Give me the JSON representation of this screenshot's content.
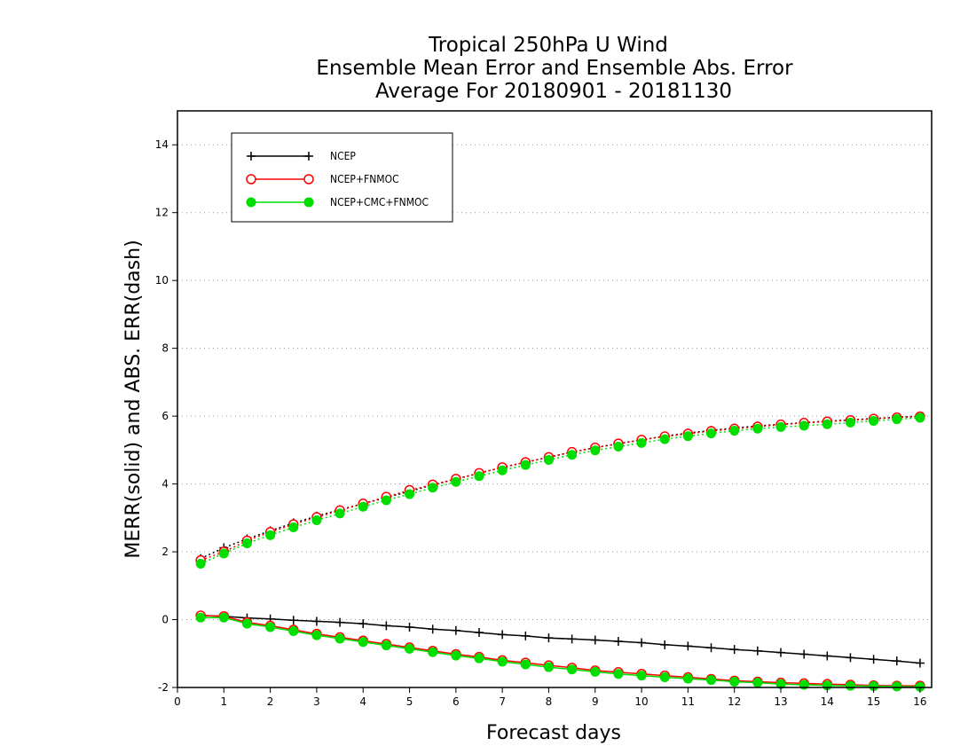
{
  "chart_data": {
    "type": "line",
    "title": [
      "Tropical 250hPa U Wind",
      "Ensemble Mean Error and Ensemble Abs. Error",
      "Average For 20180901 - 20181130"
    ],
    "xlabel": "Forecast days",
    "ylabel": "MERR(solid) and ABS. ERR(dash)",
    "xlim": [
      0,
      16.25
    ],
    "ylim": [
      -2,
      15
    ],
    "xticks": [
      0,
      1,
      2,
      3,
      4,
      5,
      6,
      7,
      8,
      9,
      10,
      11,
      12,
      13,
      14,
      15,
      16
    ],
    "yticks": [
      -2,
      0,
      2,
      4,
      6,
      8,
      10,
      12,
      14
    ],
    "grid": "horizontal dotted",
    "legend_position": "top-left",
    "x": [
      0.5,
      1,
      1.5,
      2,
      2.5,
      3,
      3.5,
      4,
      4.5,
      5,
      5.5,
      6,
      6.5,
      7,
      7.5,
      8,
      8.5,
      9,
      9.5,
      10,
      10.5,
      11,
      11.5,
      12,
      12.5,
      13,
      13.5,
      14,
      14.5,
      15,
      15.5,
      16
    ],
    "series": [
      {
        "name": "NCEP",
        "color": "#000000",
        "marker": "plus",
        "merr": [
          0.12,
          0.1,
          0.05,
          0.02,
          -0.02,
          -0.05,
          -0.08,
          -0.12,
          -0.18,
          -0.22,
          -0.28,
          -0.32,
          -0.38,
          -0.44,
          -0.48,
          -0.54,
          -0.57,
          -0.6,
          -0.64,
          -0.68,
          -0.74,
          -0.78,
          -0.83,
          -0.88,
          -0.92,
          -0.97,
          -1.02,
          -1.07,
          -1.12,
          -1.17,
          -1.22,
          -1.28
        ],
        "abs_err": [
          1.8,
          2.12,
          2.38,
          2.62,
          2.85,
          3.05,
          3.24,
          3.42,
          3.6,
          3.78,
          3.97,
          4.14,
          4.32,
          4.49,
          4.64,
          4.79,
          4.94,
          5.07,
          5.19,
          5.3,
          5.41,
          5.5,
          5.58,
          5.65,
          5.71,
          5.76,
          5.81,
          5.85,
          5.89,
          5.93,
          5.97,
          6.0
        ]
      },
      {
        "name": "NCEP+FNMOC",
        "color": "#ff0000",
        "marker": "open-circle",
        "merr": [
          0.12,
          0.1,
          -0.08,
          -0.18,
          -0.3,
          -0.42,
          -0.52,
          -0.62,
          -0.72,
          -0.82,
          -0.92,
          -1.02,
          -1.1,
          -1.2,
          -1.27,
          -1.35,
          -1.42,
          -1.5,
          -1.55,
          -1.6,
          -1.65,
          -1.7,
          -1.75,
          -1.8,
          -1.83,
          -1.86,
          -1.88,
          -1.9,
          -1.92,
          -1.94,
          -1.95,
          -1.95
        ],
        "abs_err": [
          1.75,
          2.0,
          2.33,
          2.58,
          2.81,
          3.02,
          3.22,
          3.42,
          3.62,
          3.82,
          3.98,
          4.15,
          4.32,
          4.49,
          4.64,
          4.79,
          4.94,
          5.07,
          5.19,
          5.3,
          5.4,
          5.48,
          5.56,
          5.63,
          5.69,
          5.75,
          5.8,
          5.84,
          5.88,
          5.92,
          5.96,
          5.99
        ]
      },
      {
        "name": "NCEP+CMC+FNMOC",
        "color": "#00dd00",
        "marker": "filled-circle",
        "merr": [
          0.06,
          0.06,
          -0.12,
          -0.22,
          -0.34,
          -0.46,
          -0.56,
          -0.66,
          -0.76,
          -0.86,
          -0.96,
          -1.06,
          -1.14,
          -1.24,
          -1.32,
          -1.4,
          -1.47,
          -1.54,
          -1.6,
          -1.65,
          -1.7,
          -1.74,
          -1.78,
          -1.83,
          -1.86,
          -1.9,
          -1.92,
          -1.94,
          -1.95,
          -1.96,
          -1.97,
          -1.98
        ],
        "abs_err": [
          1.65,
          1.95,
          2.25,
          2.49,
          2.72,
          2.93,
          3.13,
          3.33,
          3.52,
          3.7,
          3.89,
          4.06,
          4.23,
          4.4,
          4.56,
          4.71,
          4.86,
          4.99,
          5.1,
          5.21,
          5.32,
          5.41,
          5.49,
          5.57,
          5.63,
          5.68,
          5.72,
          5.76,
          5.81,
          5.86,
          5.91,
          5.95
        ]
      }
    ]
  }
}
